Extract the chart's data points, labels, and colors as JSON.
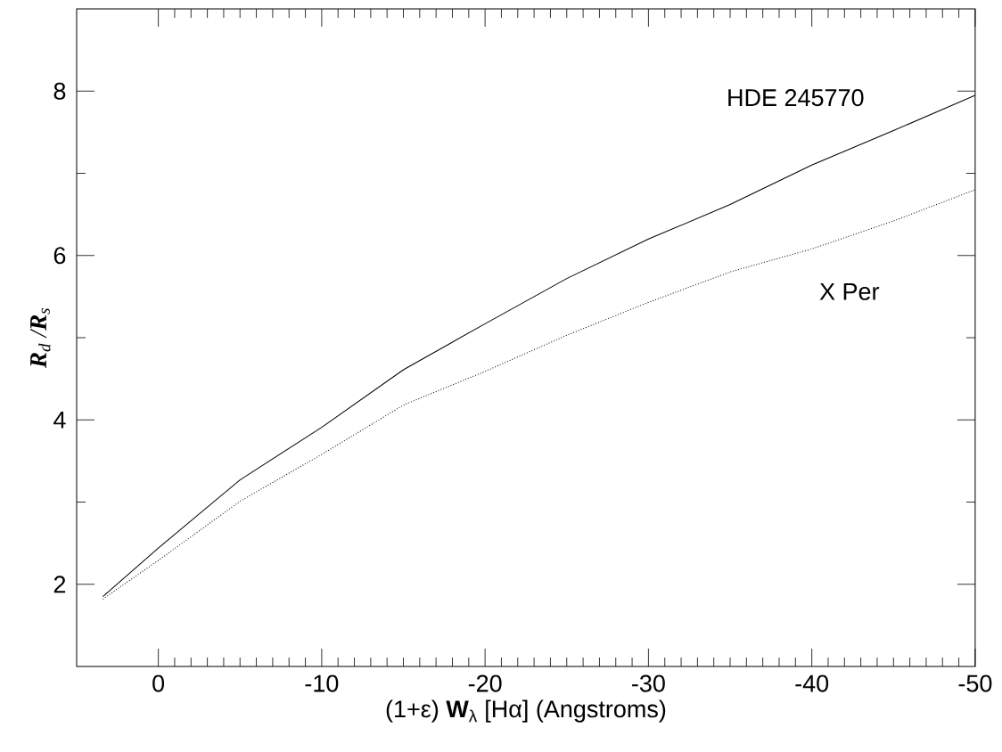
{
  "chart_data": {
    "type": "line",
    "xlabel": "(1+ε) **W**$_{λ}$ [Hα] (Angstroms)",
    "ylabel": "**R**$_{d}$ /**R**$_{s}$",
    "xlim": [
      5,
      -50
    ],
    "ylim": [
      1,
      9
    ],
    "xticks": [
      0,
      -10,
      -20,
      -30,
      -40,
      -50
    ],
    "yticks": [
      2,
      4,
      6,
      8
    ],
    "grid": false,
    "legend": false,
    "marker": "none",
    "series": [
      {
        "name": "HDE 245770",
        "color": "#000000",
        "line_style": "solid",
        "x": [
          3.4,
          0,
          -5,
          -10,
          -15,
          -20,
          -25,
          -30,
          -35,
          -40,
          -45,
          -50
        ],
        "values": [
          1.85,
          2.44,
          3.27,
          3.91,
          4.61,
          5.17,
          5.72,
          6.2,
          6.62,
          7.1,
          7.52,
          7.95
        ]
      },
      {
        "name": "X Per",
        "color": "#000000",
        "line_style": "dotted",
        "x": [
          3.4,
          0,
          -5,
          -10,
          -15,
          -20,
          -25,
          -30,
          -35,
          -40,
          -45,
          -50
        ],
        "values": [
          1.82,
          2.29,
          3.01,
          3.58,
          4.18,
          4.59,
          5.03,
          5.43,
          5.8,
          6.08,
          6.42,
          6.8
        ]
      }
    ]
  }
}
